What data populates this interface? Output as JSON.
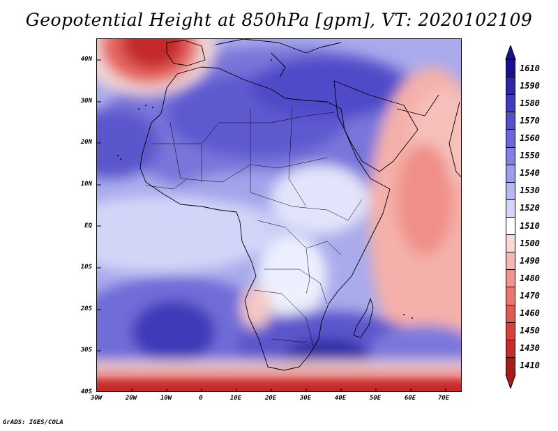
{
  "title": "Geopotential Height at 850hPa [gpm], VT: 2020102109",
  "credit": "GrADS: IGES/COLA",
  "map": {
    "lon_labels": [
      "30W",
      "20W",
      "10W",
      "0",
      "10E",
      "20E",
      "30E",
      "40E",
      "50E",
      "60E",
      "70E"
    ],
    "lat_labels": [
      "40N",
      "30N",
      "20N",
      "10N",
      "EQ",
      "10S",
      "20S",
      "30S",
      "40S"
    ],
    "lon_range": [
      -30,
      75
    ],
    "lat_range": [
      -40,
      45
    ]
  },
  "colorbar": {
    "labels": [
      "1610",
      "1590",
      "1580",
      "1570",
      "1560",
      "1550",
      "1540",
      "1530",
      "1520",
      "1510",
      "1500",
      "1490",
      "1480",
      "1470",
      "1460",
      "1450",
      "1430",
      "1410"
    ],
    "colors": [
      "#1a1096",
      "#2e26a8",
      "#3f3cbe",
      "#5551cc",
      "#6a67d8",
      "#8280e0",
      "#9d9de8",
      "#b6b8f0",
      "#d2d4f8",
      "#ffffff",
      "#fbd8d6",
      "#f6b6b2",
      "#f1948e",
      "#eb7770",
      "#e35a55",
      "#d9413f",
      "#c82b2a",
      "#a71b1b"
    ]
  }
}
